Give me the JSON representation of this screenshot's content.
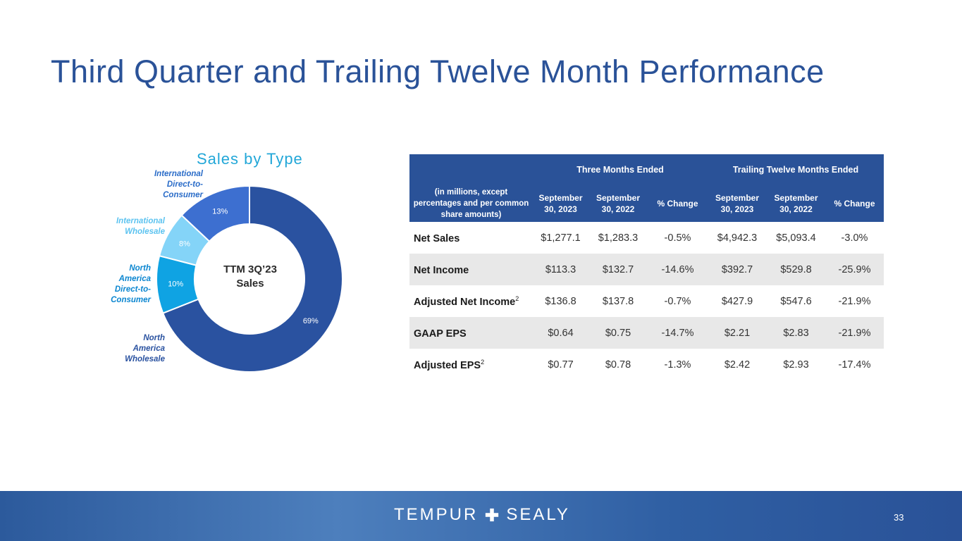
{
  "slide": {
    "title": "Third Quarter and Trailing Twelve Month Performance",
    "page_number": "33"
  },
  "chart_data": {
    "type": "pie",
    "title": "Sales by Type",
    "center_label_line1": "TTM 3Q’23",
    "center_label_line2": "Sales",
    "categories": [
      "North America Wholesale",
      "North America Direct-to-Consumer",
      "International Wholesale",
      "International Direct-to-Consumer"
    ],
    "values": [
      69,
      10,
      8,
      13
    ],
    "value_labels": [
      "69%",
      "10%",
      "8%",
      "13%"
    ],
    "legend_lines": [
      [
        "North",
        "America",
        "Wholesale"
      ],
      [
        "North",
        "America",
        "Direct-to-",
        "Consumer"
      ],
      [
        "International",
        "Wholesale"
      ],
      [
        "International",
        "Direct-to-",
        "Consumer"
      ]
    ],
    "colors": [
      "#2a52a0",
      "#0fa3e3",
      "#84d4f8",
      "#3d6fd0"
    ],
    "label_colors": [
      "#2a52a0",
      "#0b86d0",
      "#5cc3f0",
      "#2a6cc8"
    ]
  },
  "table": {
    "group_headers": [
      "Three Months Ended",
      "Trailing Twelve Months Ended"
    ],
    "row_header_label": "(in millions, except percentages and per common share amounts)",
    "columns": [
      "September 30, 2023",
      "September 30, 2022",
      "% Change",
      "September 30, 2023",
      "September 30, 2022",
      "% Change"
    ],
    "rows": [
      {
        "label": "Net Sales",
        "sup": "",
        "values": [
          "$1,277.1",
          "$1,283.3",
          "-0.5%",
          "$4,942.3",
          "$5,093.4",
          "-3.0%"
        ]
      },
      {
        "label": "Net Income",
        "sup": "",
        "values": [
          "$113.3",
          "$132.7",
          "-14.6%",
          "$392.7",
          "$529.8",
          "-25.9%"
        ]
      },
      {
        "label": "Adjusted Net Income",
        "sup": "2",
        "values": [
          "$136.8",
          "$137.8",
          "-0.7%",
          "$427.9",
          "$547.6",
          "-21.9%"
        ]
      },
      {
        "label": "GAAP EPS",
        "sup": "",
        "values": [
          "$0.64",
          "$0.75",
          "-14.7%",
          "$2.21",
          "$2.83",
          "-21.9%"
        ]
      },
      {
        "label": "Adjusted EPS",
        "sup": "2",
        "values": [
          "$0.77",
          "$0.78",
          "-1.3%",
          "$2.42",
          "$2.93",
          "-17.4%"
        ]
      }
    ]
  },
  "footer": {
    "logo_left": "TEMPUR",
    "logo_right": "SEALY",
    "logo_icon": "plus-icon"
  }
}
